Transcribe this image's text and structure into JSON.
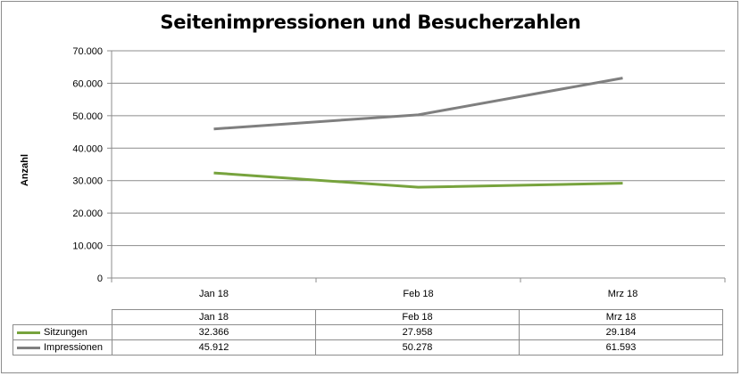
{
  "chart_data": {
    "type": "line",
    "title": "Seitenimpressionen und Besucherzahlen",
    "ylabel": "Anzahl",
    "xlabel": "",
    "categories": [
      "Jan 18",
      "Feb 18",
      "Mrz 18"
    ],
    "ylim": [
      0,
      70000
    ],
    "yticks": [
      "0",
      "10.000",
      "20.000",
      "30.000",
      "40.000",
      "50.000",
      "60.000",
      "70.000"
    ],
    "grid": true,
    "legend": "data-table-bottom",
    "series": [
      {
        "name": "Sitzungen",
        "color": "#77a33d",
        "values": [
          32366,
          27958,
          29184
        ],
        "labels": [
          "32.366",
          "27.958",
          "29.184"
        ]
      },
      {
        "name": "Impressionen",
        "color": "#7f7f7f",
        "values": [
          45912,
          50278,
          61593
        ],
        "labels": [
          "45.912",
          "50.278",
          "61.593"
        ]
      }
    ]
  }
}
